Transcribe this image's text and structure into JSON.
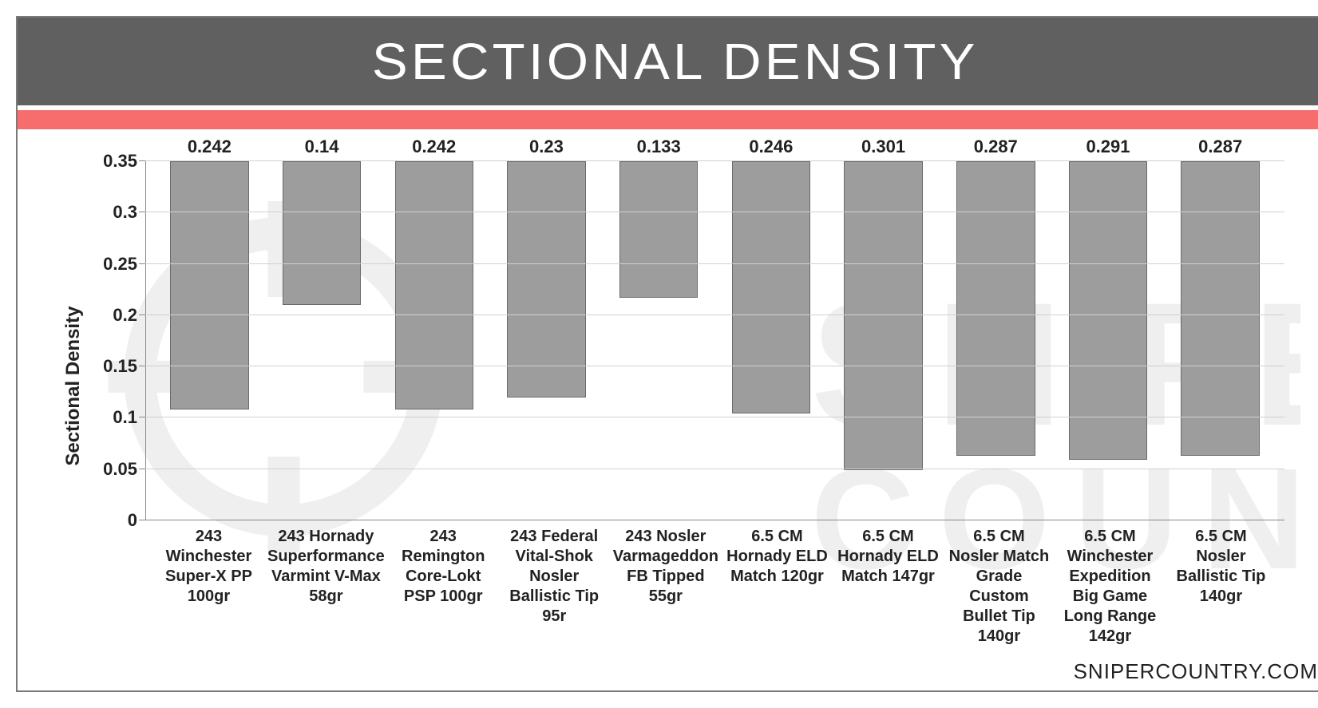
{
  "header": {
    "title": "SECTIONAL DENSITY",
    "bg_color": "#606060",
    "text_color": "#ffffff",
    "accent_color": "#f76c6c"
  },
  "chart": {
    "type": "bar",
    "y_axis_label": "Sectional Density",
    "ylim": [
      0,
      0.35
    ],
    "ytick_step": 0.05,
    "yticks": [
      "0",
      "0.05",
      "0.1",
      "0.15",
      "0.2",
      "0.25",
      "0.3",
      "0.35"
    ],
    "grid_color": "#d0d0d0",
    "axis_color": "#888888",
    "bar_color": "#9d9d9d",
    "bar_border_color": "#6a6a6a",
    "background_color": "#ffffff",
    "value_fontsize": 22,
    "axis_fontsize": 22,
    "label_fontsize": 20,
    "bar_width": 0.7,
    "categories": [
      "243 Winchester Super-X PP 100gr",
      "243 Hornady Superformance Varmint V-Max 58gr",
      "243 Remington Core-Lokt PSP 100gr",
      "243 Federal Vital-Shok Nosler Ballistic Tip 95r",
      "243 Nosler Varmageddon FB Tipped 55gr",
      "6.5 CM Hornady ELD Match 120gr",
      "6.5 CM Hornady ELD Match 147gr",
      "6.5 CM Nosler Match Grade Custom Bullet Tip 140gr",
      "6.5 CM Winchester Expedition Big Game Long Range 142gr",
      "6.5 CM Nosler Ballistic Tip 140gr"
    ],
    "values": [
      0.242,
      0.14,
      0.242,
      0.23,
      0.133,
      0.246,
      0.301,
      0.287,
      0.291,
      0.287
    ],
    "value_labels": [
      "0.242",
      "0.14",
      "0.242",
      "0.23",
      "0.133",
      "0.246",
      "0.301",
      "0.287",
      "0.291",
      "0.287"
    ]
  },
  "footer": {
    "text": "SNIPERCOUNTRY.COM"
  }
}
